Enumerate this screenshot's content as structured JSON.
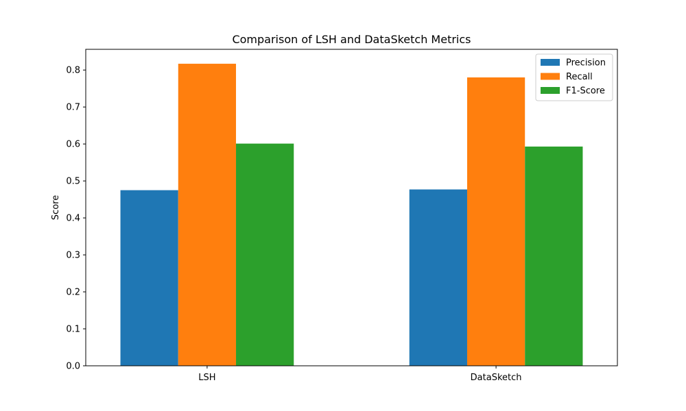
{
  "chart_data": {
    "type": "bar",
    "title": "Comparison of LSH and DataSketch Metrics",
    "xlabel": "",
    "ylabel": "Score",
    "categories": [
      "LSH",
      "DataSketch"
    ],
    "series": [
      {
        "name": "Precision",
        "color": "#1f77b4",
        "values": [
          0.475,
          0.477
        ]
      },
      {
        "name": "Recall",
        "color": "#ff7f0e",
        "values": [
          0.817,
          0.78
        ]
      },
      {
        "name": "F1-Score",
        "color": "#2ca02c",
        "values": [
          0.601,
          0.593
        ]
      }
    ],
    "ylim": [
      0,
      0.856
    ],
    "yticks": [
      "0.0",
      "0.1",
      "0.2",
      "0.3",
      "0.4",
      "0.5",
      "0.6",
      "0.7",
      "0.8"
    ],
    "grid": false,
    "legend_position": "top-right"
  }
}
